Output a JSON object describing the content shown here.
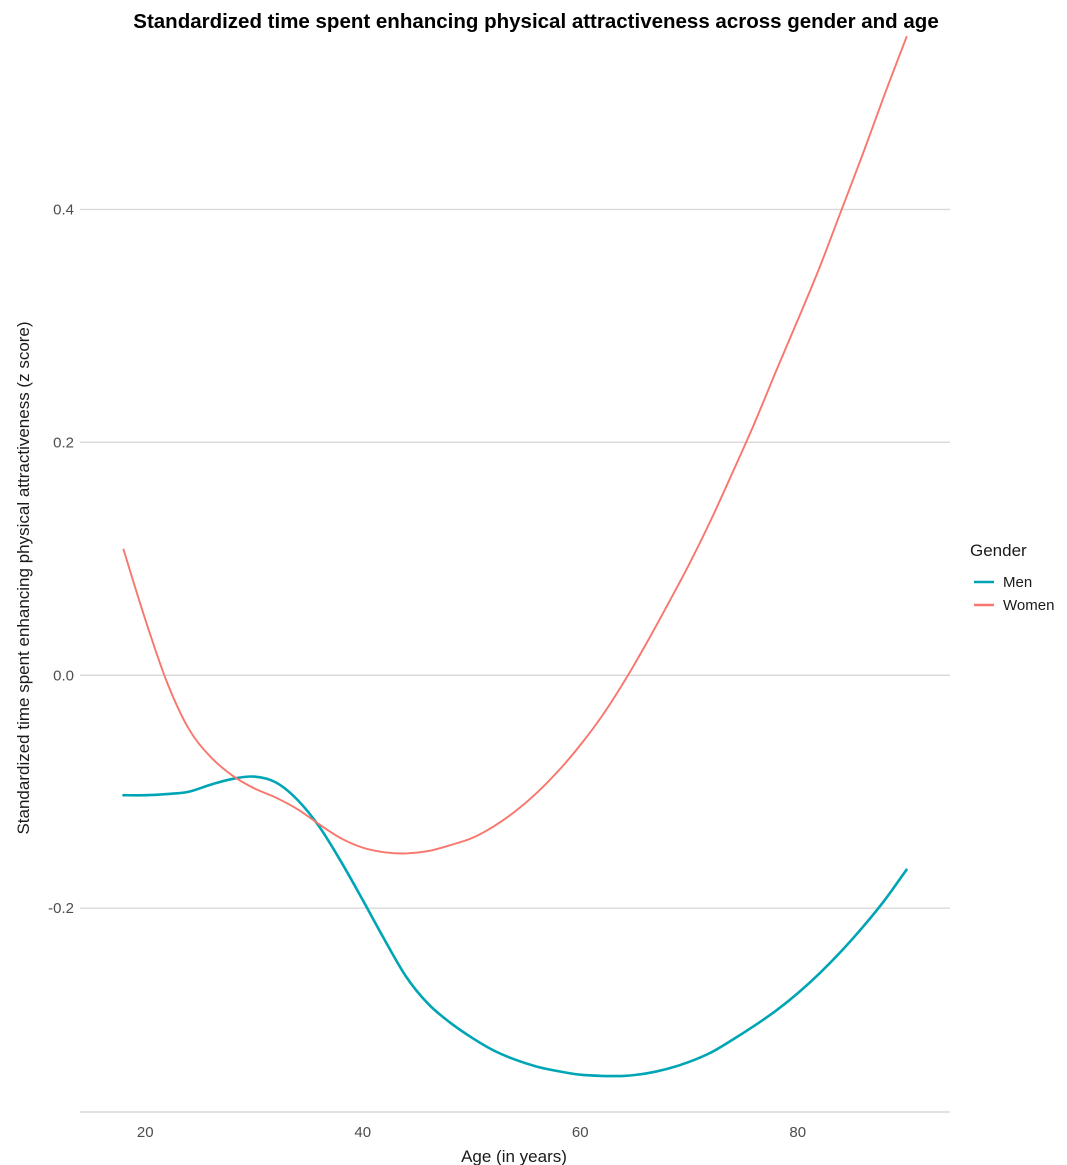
{
  "chart_data": {
    "type": "line",
    "title": "Standardized time spent enhancing physical attractiveness across gender and age",
    "xlabel": "Age (in years)",
    "ylabel": "Standardized time spent enhancing physical attractiveness (z score)",
    "xlim": [
      14,
      94
    ],
    "ylim": [
      -0.375,
      0.53
    ],
    "xticks": [
      20,
      40,
      60,
      80
    ],
    "xtick_labels": [
      "20",
      "40",
      "60",
      "80"
    ],
    "yticks": [
      -0.2,
      0.0,
      0.2,
      0.4
    ],
    "ytick_labels": [
      "-0.2",
      "0.0",
      "0.2",
      "0.4"
    ],
    "grid": true,
    "legend": {
      "title": "Gender",
      "position": "right"
    },
    "series": [
      {
        "name": "Men",
        "color": "#00A5B5",
        "x": [
          18,
          20,
          22,
          24,
          26,
          28,
          30,
          32,
          34,
          36,
          38,
          40,
          42,
          44,
          46,
          48,
          50,
          52,
          54,
          56,
          58,
          60,
          62,
          64,
          66,
          68,
          70,
          72,
          74,
          76,
          78,
          80,
          82,
          84,
          86,
          88,
          90
        ],
        "y": [
          -0.103,
          -0.103,
          -0.102,
          -0.1,
          -0.094,
          -0.089,
          -0.087,
          -0.092,
          -0.107,
          -0.13,
          -0.16,
          -0.193,
          -0.227,
          -0.259,
          -0.282,
          -0.298,
          -0.311,
          -0.322,
          -0.33,
          -0.336,
          -0.34,
          -0.343,
          -0.344,
          -0.344,
          -0.342,
          -0.338,
          -0.332,
          -0.324,
          -0.313,
          -0.301,
          -0.288,
          -0.273,
          -0.256,
          -0.237,
          -0.216,
          -0.193,
          -0.167
        ]
      },
      {
        "name": "Women",
        "color": "#F8766D",
        "x": [
          18,
          20,
          22,
          24,
          26,
          28,
          30,
          32,
          34,
          36,
          38,
          40,
          42,
          44,
          46,
          48,
          50,
          52,
          54,
          56,
          58,
          60,
          62,
          64,
          66,
          68,
          70,
          72,
          74,
          76,
          78,
          80,
          82,
          84,
          86,
          88,
          90
        ],
        "y": [
          0.108,
          0.048,
          -0.006,
          -0.046,
          -0.07,
          -0.086,
          -0.097,
          -0.105,
          -0.115,
          -0.128,
          -0.14,
          -0.148,
          -0.152,
          -0.153,
          -0.151,
          -0.146,
          -0.14,
          -0.13,
          -0.117,
          -0.101,
          -0.082,
          -0.06,
          -0.035,
          -0.006,
          0.026,
          0.06,
          0.095,
          0.133,
          0.174,
          0.216,
          0.261,
          0.305,
          0.35,
          0.399,
          0.448,
          0.499,
          0.548
        ]
      }
    ]
  }
}
